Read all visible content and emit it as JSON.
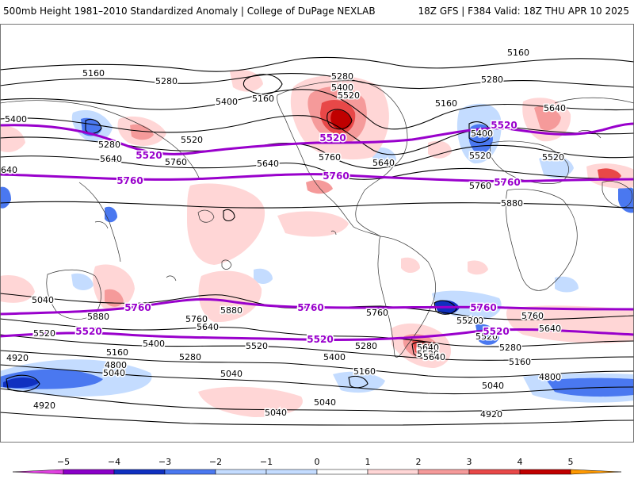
{
  "header": {
    "title_left": "500mb Height 1981–2010 Standardized Anomaly | College of DuPage NEXLAB",
    "title_right": "18Z GFS | F384 Valid: 18Z THU APR 10 2025"
  },
  "colors": {
    "anom_neg5": "#e040e0",
    "anom_neg4": "#8a00c8",
    "anom_neg3": "#1030c0",
    "anom_neg2": "#4a78f0",
    "anom_neg1": "#c4dcff",
    "anom_pos1": "#ffd6d6",
    "anom_pos2": "#f59a9a",
    "anom_pos3": "#e84848",
    "anom_pos4": "#c00000",
    "anom_pos5": "#ff9900",
    "contour": "#000000",
    "highlight_contour": "#9900cc",
    "coastline": "#333333"
  },
  "colorbar": {
    "ticks": [
      "−5",
      "−4",
      "−3",
      "−2",
      "−1",
      "0",
      "1",
      "2",
      "3",
      "4",
      "5"
    ],
    "ticks_values": [
      -5,
      -4,
      -3,
      -2,
      -1,
      0,
      1,
      2,
      3,
      4,
      5
    ]
  },
  "contour_labels": [
    {
      "text": "5160"
    },
    {
      "text": "5280"
    },
    {
      "text": "5400"
    },
    {
      "text": "5160"
    },
    {
      "text": "5280"
    },
    {
      "text": "5400"
    },
    {
      "text": "5520"
    },
    {
      "text": "5160"
    },
    {
      "text": "5160"
    },
    {
      "text": "5280"
    },
    {
      "text": "5640"
    },
    {
      "text": "5400"
    },
    {
      "text": "5280"
    },
    {
      "text": "5520"
    },
    {
      "text": "5400"
    },
    {
      "text": "5520"
    },
    {
      "text": "5640"
    },
    {
      "text": "5760"
    },
    {
      "text": "5760"
    },
    {
      "text": "5640"
    },
    {
      "text": "5640"
    },
    {
      "text": "5520"
    },
    {
      "text": "5760"
    },
    {
      "text": "5880"
    },
    {
      "text": "5640"
    },
    {
      "text": "5880"
    },
    {
      "text": "5880"
    },
    {
      "text": "5760"
    },
    {
      "text": "5640"
    },
    {
      "text": "5520"
    },
    {
      "text": "5400"
    },
    {
      "text": "5160"
    },
    {
      "text": "5280"
    },
    {
      "text": "5520"
    },
    {
      "text": "5400"
    },
    {
      "text": "5280"
    },
    {
      "text": "5160"
    },
    {
      "text": "5040"
    },
    {
      "text": "4920"
    },
    {
      "text": "4800"
    },
    {
      "text": "5040"
    },
    {
      "text": "4920"
    },
    {
      "text": "5040"
    },
    {
      "text": "5040"
    },
    {
      "text": "5760"
    },
    {
      "text": "5400"
    },
    {
      "text": "5640"
    },
    {
      "text": "5520"
    },
    {
      "text": "5280"
    },
    {
      "text": "5160"
    },
    {
      "text": "5760"
    },
    {
      "text": "5640"
    },
    {
      "text": "5040"
    },
    {
      "text": "4800"
    },
    {
      "text": "4920"
    },
    {
      "text": "5040"
    },
    {
      "text": "5520"
    },
    {
      "text": "5640"
    },
    {
      "text": "5520"
    }
  ],
  "highlight_labels": [
    {
      "text": "5520"
    },
    {
      "text": "5520"
    },
    {
      "text": "5520"
    },
    {
      "text": "5760"
    },
    {
      "text": "5760"
    },
    {
      "text": "5760"
    },
    {
      "text": "5760"
    },
    {
      "text": "5760"
    },
    {
      "text": "5760"
    },
    {
      "text": "5520"
    },
    {
      "text": "5520"
    },
    {
      "text": "5520"
    }
  ]
}
